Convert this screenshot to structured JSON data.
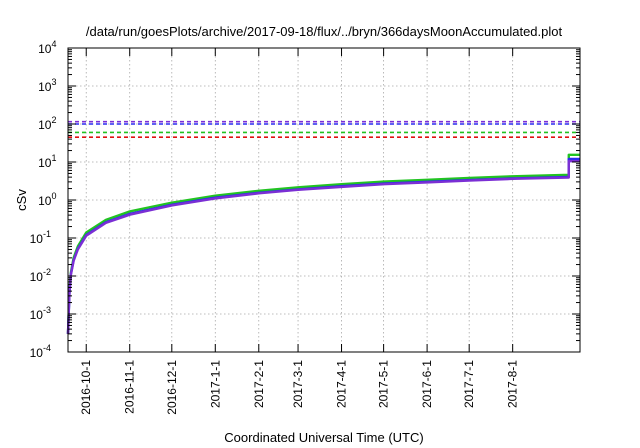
{
  "chart_data": {
    "type": "line",
    "title": "/data/run/goesPlots/archive/2017-09-18/flux/../bryn/366daysMoonAccumulated.plot",
    "xlabel": "Coordinated Universal Time (UTC)",
    "ylabel": "cSv",
    "y_scale": "log",
    "ylim": [
      0.0001,
      10000
    ],
    "xlim": [
      "2016-09-18",
      "2017-09-18"
    ],
    "grid": true,
    "y_ticks": [
      {
        "value": 0.0001,
        "base": "10",
        "exp": "-4"
      },
      {
        "value": 0.001,
        "base": "10",
        "exp": "-3"
      },
      {
        "value": 0.01,
        "base": "10",
        "exp": "-2"
      },
      {
        "value": 0.1,
        "base": "10",
        "exp": "-1"
      },
      {
        "value": 1,
        "base": "10",
        "exp": "0"
      },
      {
        "value": 10,
        "base": "10",
        "exp": "1"
      },
      {
        "value": 100,
        "base": "10",
        "exp": "2"
      },
      {
        "value": 1000,
        "base": "10",
        "exp": "3"
      },
      {
        "value": 10000,
        "base": "10",
        "exp": "4"
      }
    ],
    "x_ticks": [
      "2016-10-1",
      "2016-11-1",
      "2016-12-1",
      "2017-1-1",
      "2017-2-1",
      "2017-3-1",
      "2017-4-1",
      "2017-5-1",
      "2017-6-1",
      "2017-7-1",
      "2017-8-1"
    ],
    "reference_lines": [
      {
        "value": 115,
        "color": "#7b2fd4",
        "style": "dashed"
      },
      {
        "value": 100,
        "color": "#2a2af0",
        "style": "dashed"
      },
      {
        "value": 60,
        "color": "#22c322",
        "style": "dashed"
      },
      {
        "value": 45,
        "color": "#e01010",
        "style": "dashed"
      }
    ],
    "series": [
      {
        "color": "#22c322",
        "points": [
          [
            "2016-09-18",
            0.0003
          ],
          [
            "2016-09-19",
            0.004
          ],
          [
            "2016-09-20",
            0.012
          ],
          [
            "2016-09-22",
            0.03
          ],
          [
            "2016-09-25",
            0.06
          ],
          [
            "2016-10-01",
            0.14
          ],
          [
            "2016-10-15",
            0.3
          ],
          [
            "2016-11-01",
            0.5
          ],
          [
            "2016-12-01",
            0.85
          ],
          [
            "2017-01-01",
            1.3
          ],
          [
            "2017-02-01",
            1.75
          ],
          [
            "2017-03-01",
            2.15
          ],
          [
            "2017-04-01",
            2.6
          ],
          [
            "2017-05-01",
            3.05
          ],
          [
            "2017-06-01",
            3.4
          ],
          [
            "2017-07-01",
            3.8
          ],
          [
            "2017-08-01",
            4.2
          ],
          [
            "2017-09-10",
            4.6
          ],
          [
            "2017-09-10",
            15.5
          ],
          [
            "2017-09-18",
            15.5
          ]
        ]
      },
      {
        "color": "#2a2af0",
        "points": [
          [
            "2016-09-18",
            0.0003
          ],
          [
            "2016-09-19",
            0.0035
          ],
          [
            "2016-09-20",
            0.011
          ],
          [
            "2016-09-22",
            0.026
          ],
          [
            "2016-09-25",
            0.052
          ],
          [
            "2016-10-01",
            0.12
          ],
          [
            "2016-10-15",
            0.26
          ],
          [
            "2016-11-01",
            0.43
          ],
          [
            "2016-12-01",
            0.75
          ],
          [
            "2017-01-01",
            1.15
          ],
          [
            "2017-02-01",
            1.55
          ],
          [
            "2017-03-01",
            1.9
          ],
          [
            "2017-04-01",
            2.3
          ],
          [
            "2017-05-01",
            2.7
          ],
          [
            "2017-06-01",
            3.0
          ],
          [
            "2017-07-01",
            3.35
          ],
          [
            "2017-08-01",
            3.7
          ],
          [
            "2017-09-10",
            4.05
          ],
          [
            "2017-09-10",
            12
          ],
          [
            "2017-09-18",
            12
          ]
        ]
      },
      {
        "color": "#7b2fd4",
        "points": [
          [
            "2016-09-18",
            0.0003
          ],
          [
            "2016-09-19",
            0.0033
          ],
          [
            "2016-09-20",
            0.0105
          ],
          [
            "2016-09-22",
            0.025
          ],
          [
            "2016-09-25",
            0.05
          ],
          [
            "2016-10-01",
            0.115
          ],
          [
            "2016-10-15",
            0.25
          ],
          [
            "2016-11-01",
            0.41
          ],
          [
            "2016-12-01",
            0.72
          ],
          [
            "2017-01-01",
            1.1
          ],
          [
            "2017-02-01",
            1.5
          ],
          [
            "2017-03-01",
            1.85
          ],
          [
            "2017-04-01",
            2.2
          ],
          [
            "2017-05-01",
            2.6
          ],
          [
            "2017-06-01",
            2.9
          ],
          [
            "2017-07-01",
            3.25
          ],
          [
            "2017-08-01",
            3.6
          ],
          [
            "2017-09-10",
            3.9
          ],
          [
            "2017-09-10",
            10.5
          ],
          [
            "2017-09-18",
            10.5
          ]
        ]
      }
    ]
  }
}
